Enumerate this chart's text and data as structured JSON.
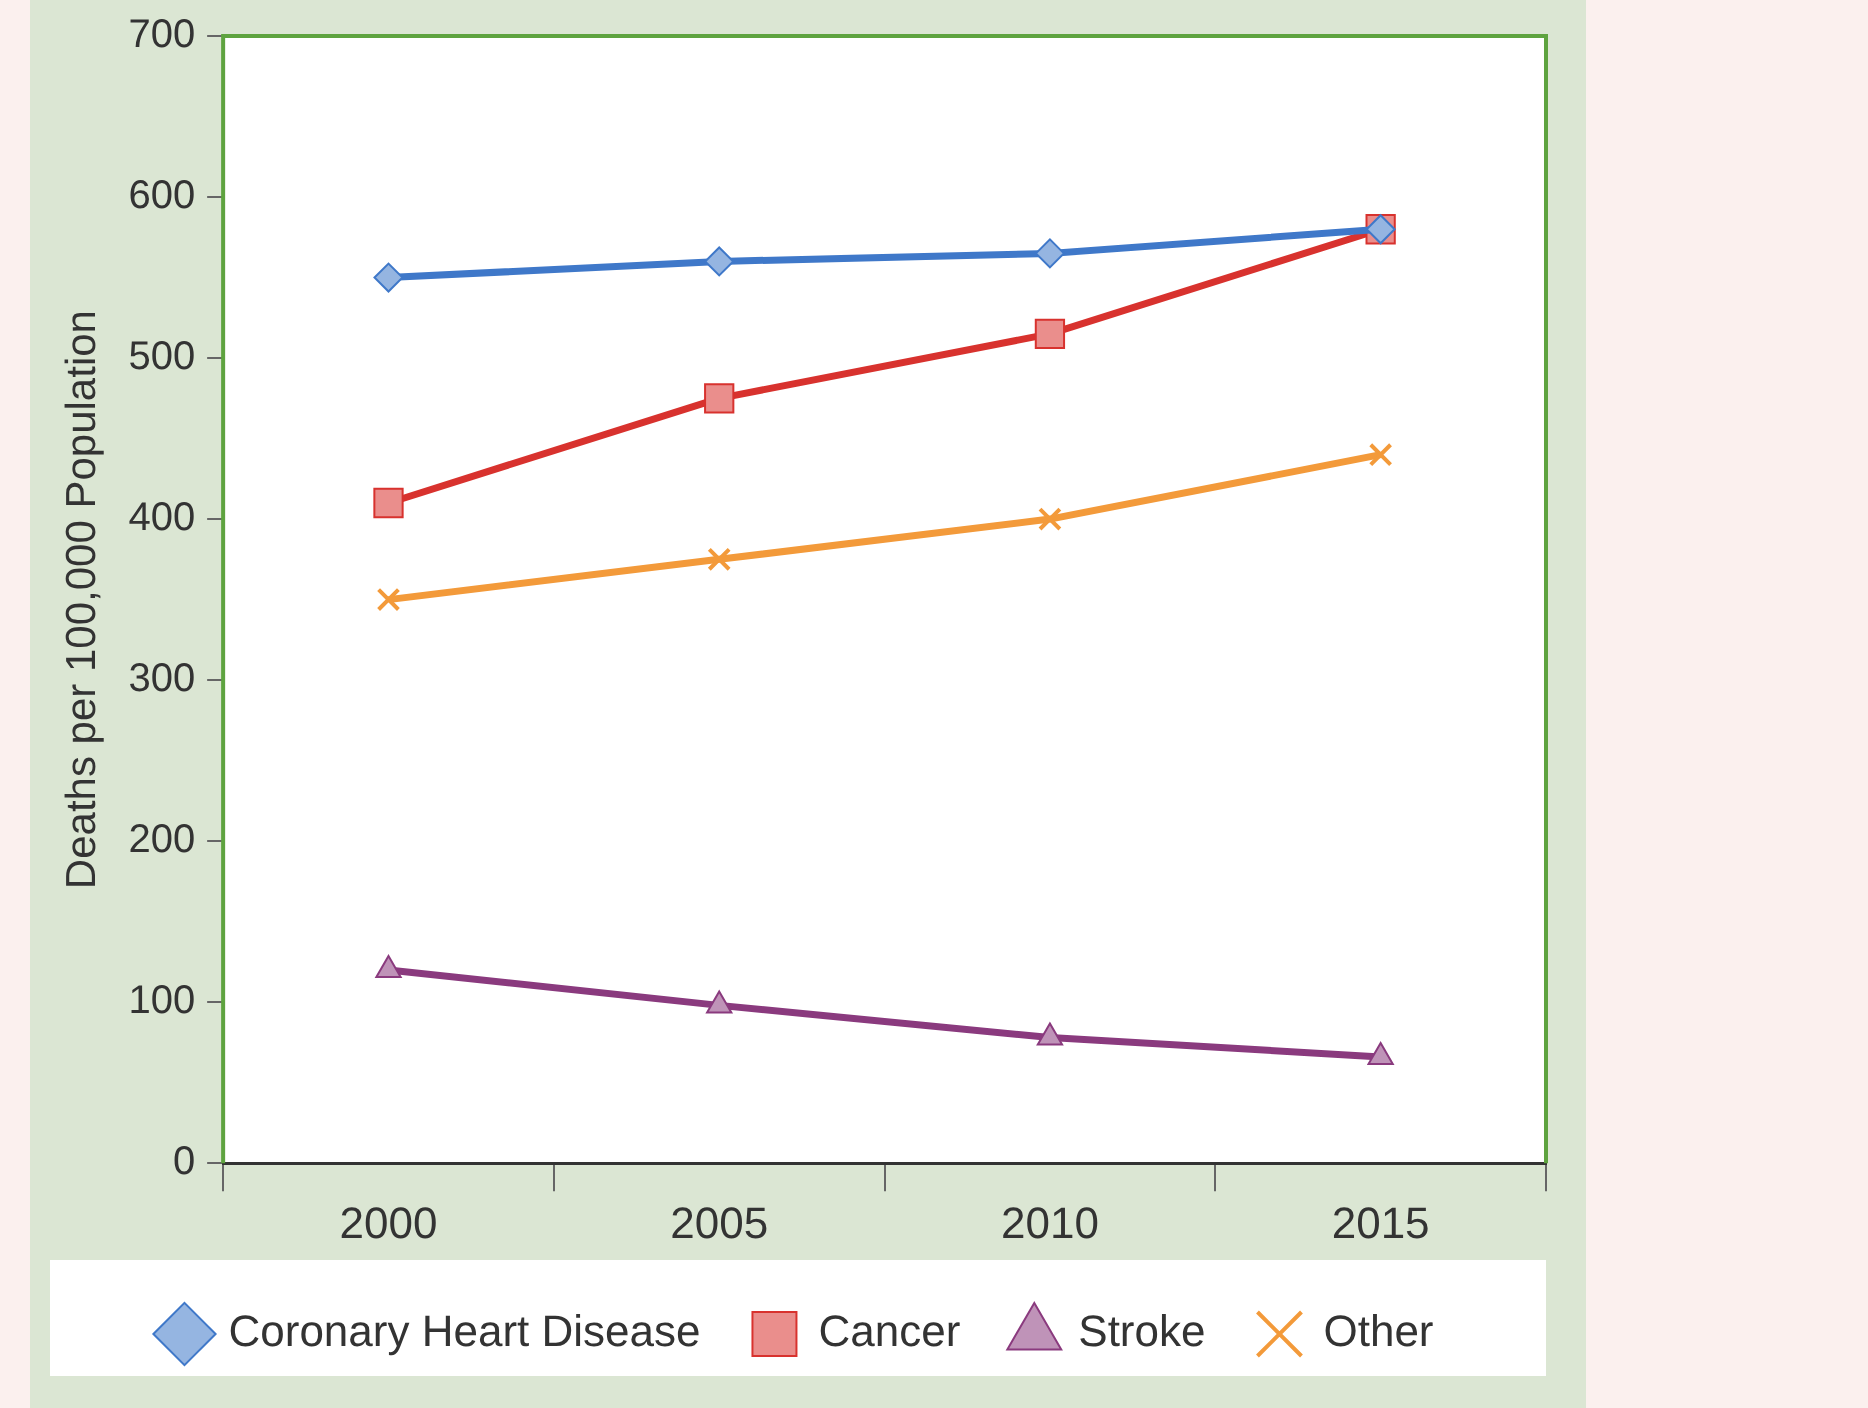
{
  "chart_data": {
    "type": "line",
    "ylabel": "Deaths per 100,000 Population",
    "categories": [
      "2000",
      "2005",
      "2010",
      "2015"
    ],
    "ylim": [
      0,
      700
    ],
    "yticks": [
      0,
      100,
      200,
      300,
      400,
      500,
      600,
      700
    ],
    "grid": false,
    "legend": "bottom",
    "line_style": "solid",
    "series": [
      {
        "name": "Coronary Heart Disease",
        "color": "#3f78c9",
        "marker": "diamond",
        "values": [
          550,
          560,
          565,
          580
        ]
      },
      {
        "name": "Cancer",
        "color": "#d8322e",
        "marker": "square",
        "values": [
          410,
          475,
          515,
          580
        ]
      },
      {
        "name": "Stroke",
        "color": "#8a3a7e",
        "marker": "triangle",
        "values": [
          120,
          98,
          78,
          66
        ]
      },
      {
        "name": "Other",
        "color": "#f39a3a",
        "marker": "cross",
        "values": [
          350,
          375,
          400,
          440
        ]
      }
    ]
  }
}
